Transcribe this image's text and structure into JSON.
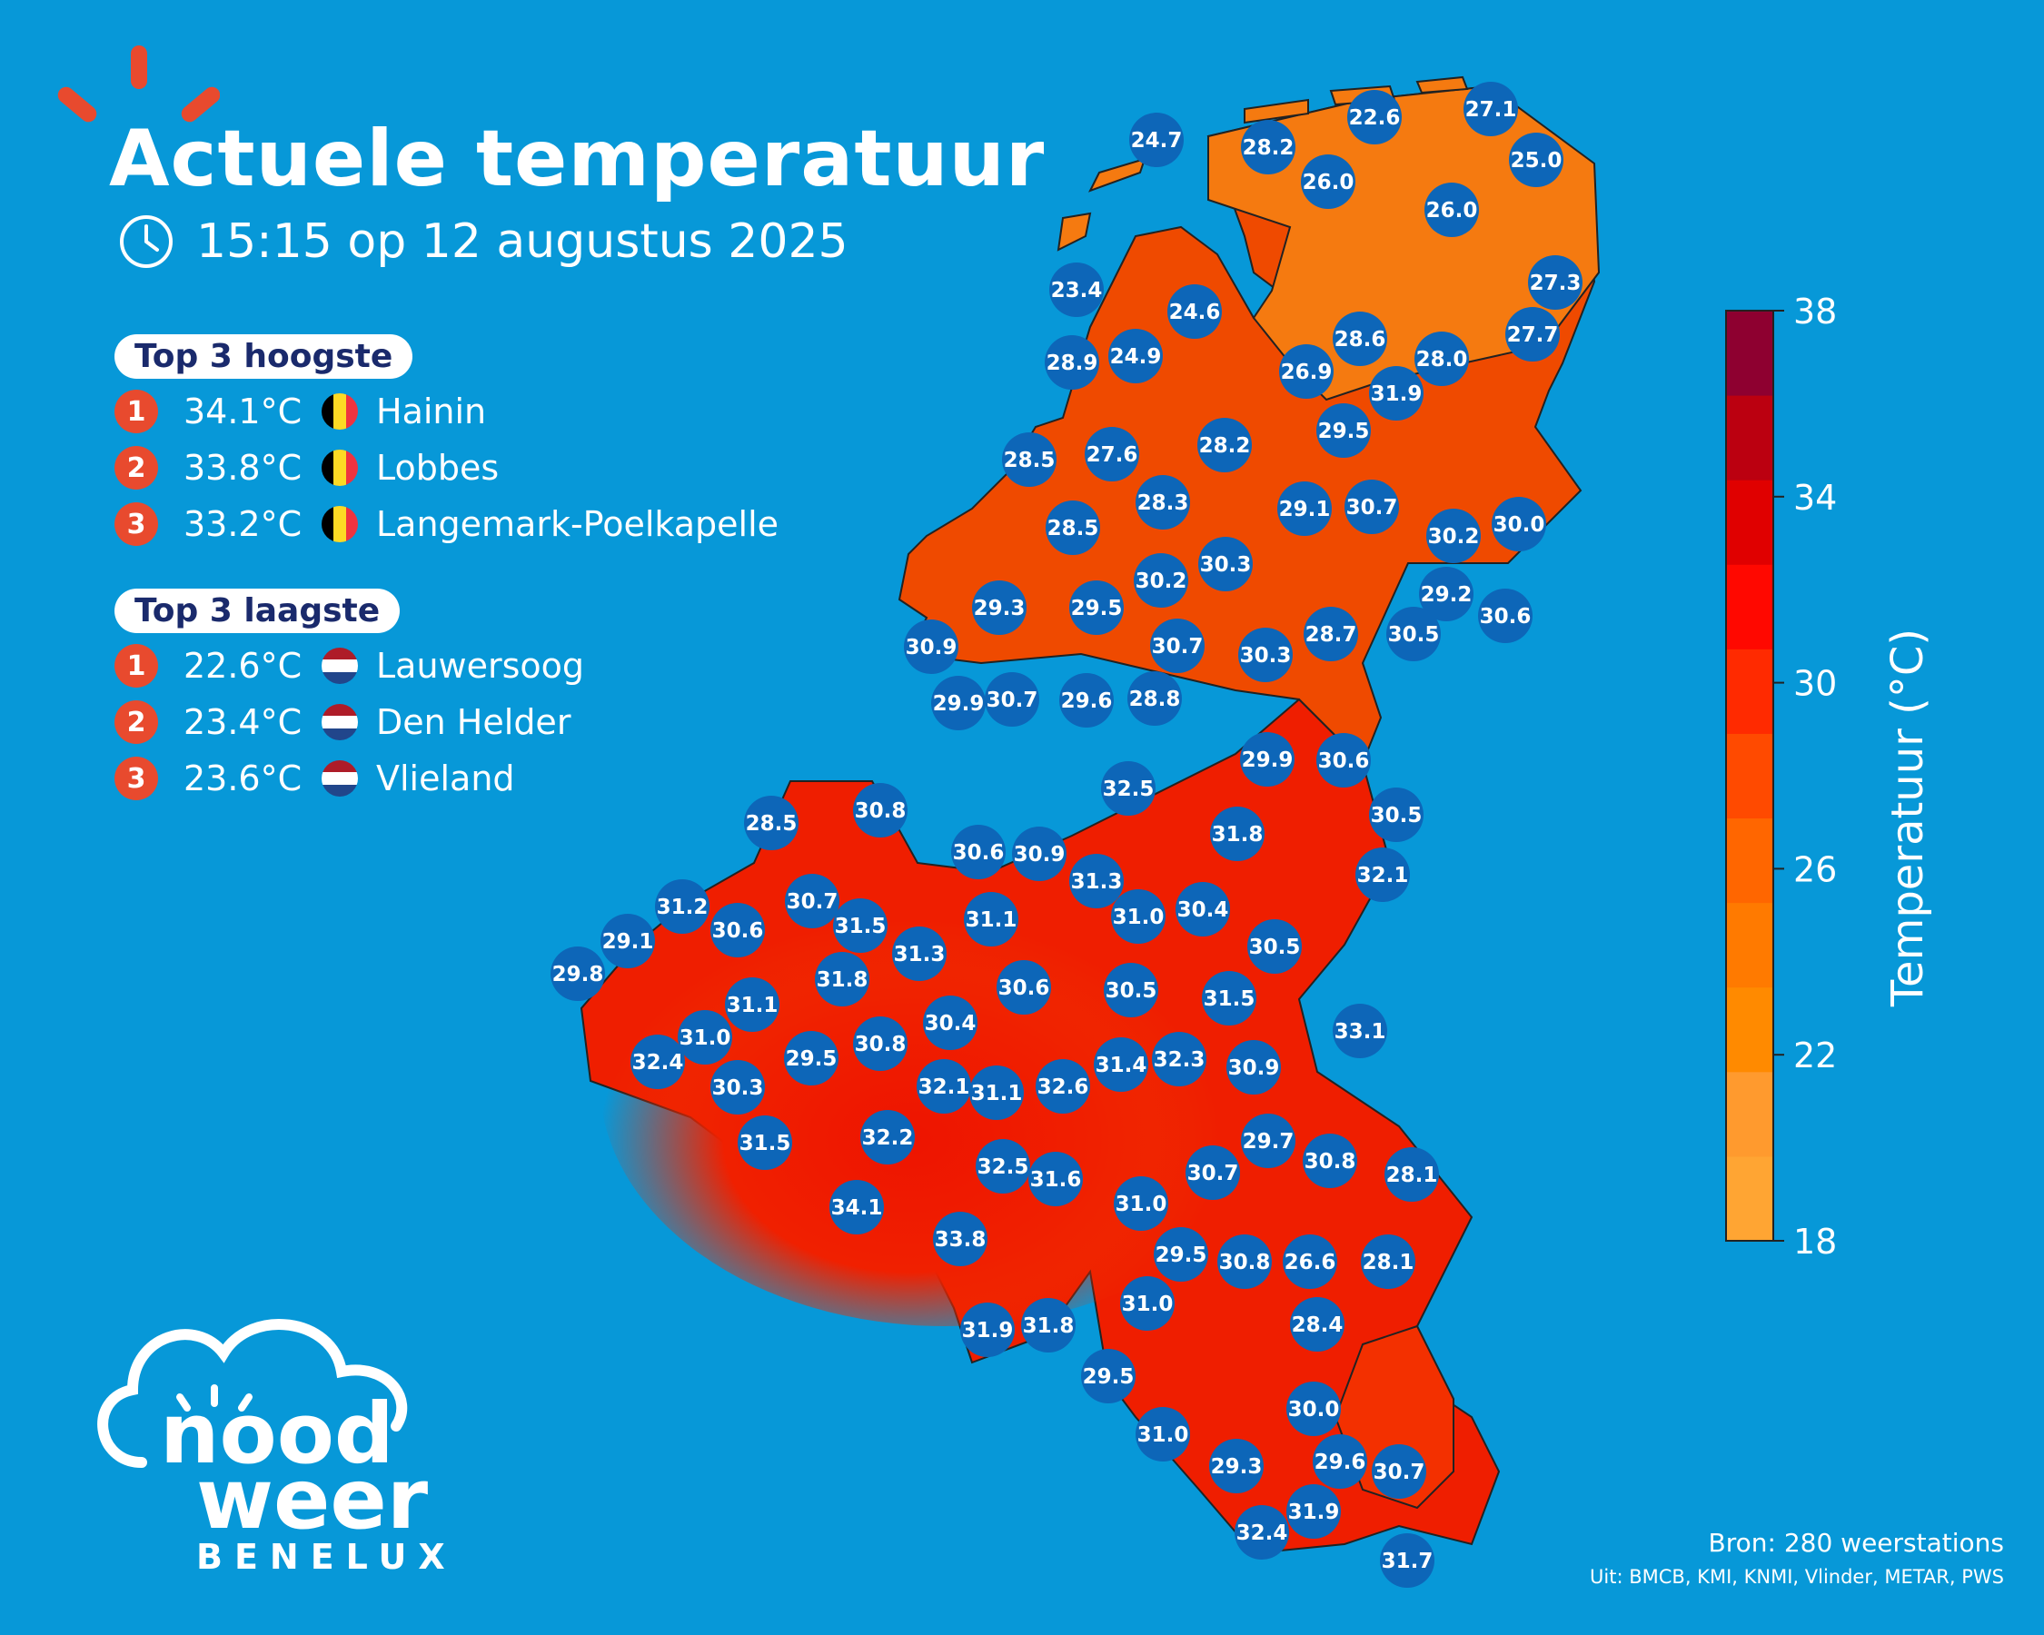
{
  "title": "Actuele temperatuur",
  "subtitle": "15:15 op 12 augustus 2025",
  "top_high": {
    "label": "Top 3 hoogste",
    "items": [
      {
        "rank": "1",
        "temp": "34.1°C",
        "country": "BE",
        "name": "Hainin"
      },
      {
        "rank": "2",
        "temp": "33.8°C",
        "country": "BE",
        "name": "Lobbes"
      },
      {
        "rank": "3",
        "temp": "33.2°C",
        "country": "BE",
        "name": "Langemark-Poelkapelle"
      }
    ]
  },
  "top_low": {
    "label": "Top 3 laagste",
    "items": [
      {
        "rank": "1",
        "temp": "22.6°C",
        "country": "NL",
        "name": "Lauwersoog"
      },
      {
        "rank": "2",
        "temp": "23.4°C",
        "country": "NL",
        "name": "Den Helder"
      },
      {
        "rank": "3",
        "temp": "23.6°C",
        "country": "NL",
        "name": "Vlieland"
      }
    ]
  },
  "colorbar": {
    "label": "Temperatuur (°C)",
    "min": 18,
    "max": 38,
    "ticks": [
      "38",
      "34",
      "30",
      "26",
      "22",
      "18"
    ],
    "colors": [
      "#ffa533",
      "#ff9a2e",
      "#ff8a00",
      "#ff7a00",
      "#ff6600",
      "#ff4a00",
      "#ff2a00",
      "#ff0800",
      "#e00000",
      "#bb0010",
      "#8e0030"
    ]
  },
  "stations": [
    "24.7",
    "28.2",
    "22.6",
    "27.1",
    "25.0",
    "26.0",
    "26.0",
    "23.4",
    "24.6",
    "27.3",
    "27.7",
    "28.9",
    "24.9",
    "28.6",
    "28.0",
    "26.9",
    "31.9",
    "29.5",
    "28.5",
    "27.6",
    "28.2",
    "28.3",
    "29.1",
    "30.7",
    "30.2",
    "30.0",
    "28.5",
    "30.2",
    "30.3",
    "29.2",
    "30.6",
    "29.3",
    "29.5",
    "30.9",
    "30.7",
    "30.3",
    "28.7",
    "30.5",
    "29.9",
    "30.7",
    "29.6",
    "28.8",
    "29.9",
    "30.6",
    "32.5",
    "30.5",
    "28.5",
    "30.8",
    "31.8",
    "32.1",
    "30.6",
    "30.9",
    "31.3",
    "31.2",
    "30.7",
    "31.5",
    "31.1",
    "31.0",
    "30.4",
    "29.1",
    "30.6",
    "31.3",
    "30.5",
    "29.8",
    "31.8",
    "30.6",
    "30.5",
    "31.5",
    "31.1",
    "30.4",
    "33.1",
    "31.0",
    "32.4",
    "29.5",
    "30.8",
    "31.4",
    "32.3",
    "30.9",
    "30.3",
    "32.1",
    "31.1",
    "32.6",
    "31.5",
    "32.2",
    "29.7",
    "30.8",
    "32.5",
    "31.6",
    "30.7",
    "28.1",
    "34.1",
    "31.0",
    "33.8",
    "29.5",
    "30.8",
    "26.6",
    "28.1",
    "31.0",
    "31.9",
    "31.8",
    "28.4",
    "29.5",
    "30.0",
    "31.0",
    "29.3",
    "29.6",
    "30.7",
    "32.4",
    "31.9",
    "31.7"
  ],
  "source": "Bron: 280 weerstations",
  "source_sub": "Uit: BMCB, KMI, KNMI, Vlinder, METAR, PWS",
  "logo": {
    "top": "nood",
    "bottom": "weer",
    "wordmark": "BENELUX"
  },
  "colors": {
    "background": "#0798d8",
    "station": "#0d66b8",
    "accent": "#e84a2e"
  }
}
